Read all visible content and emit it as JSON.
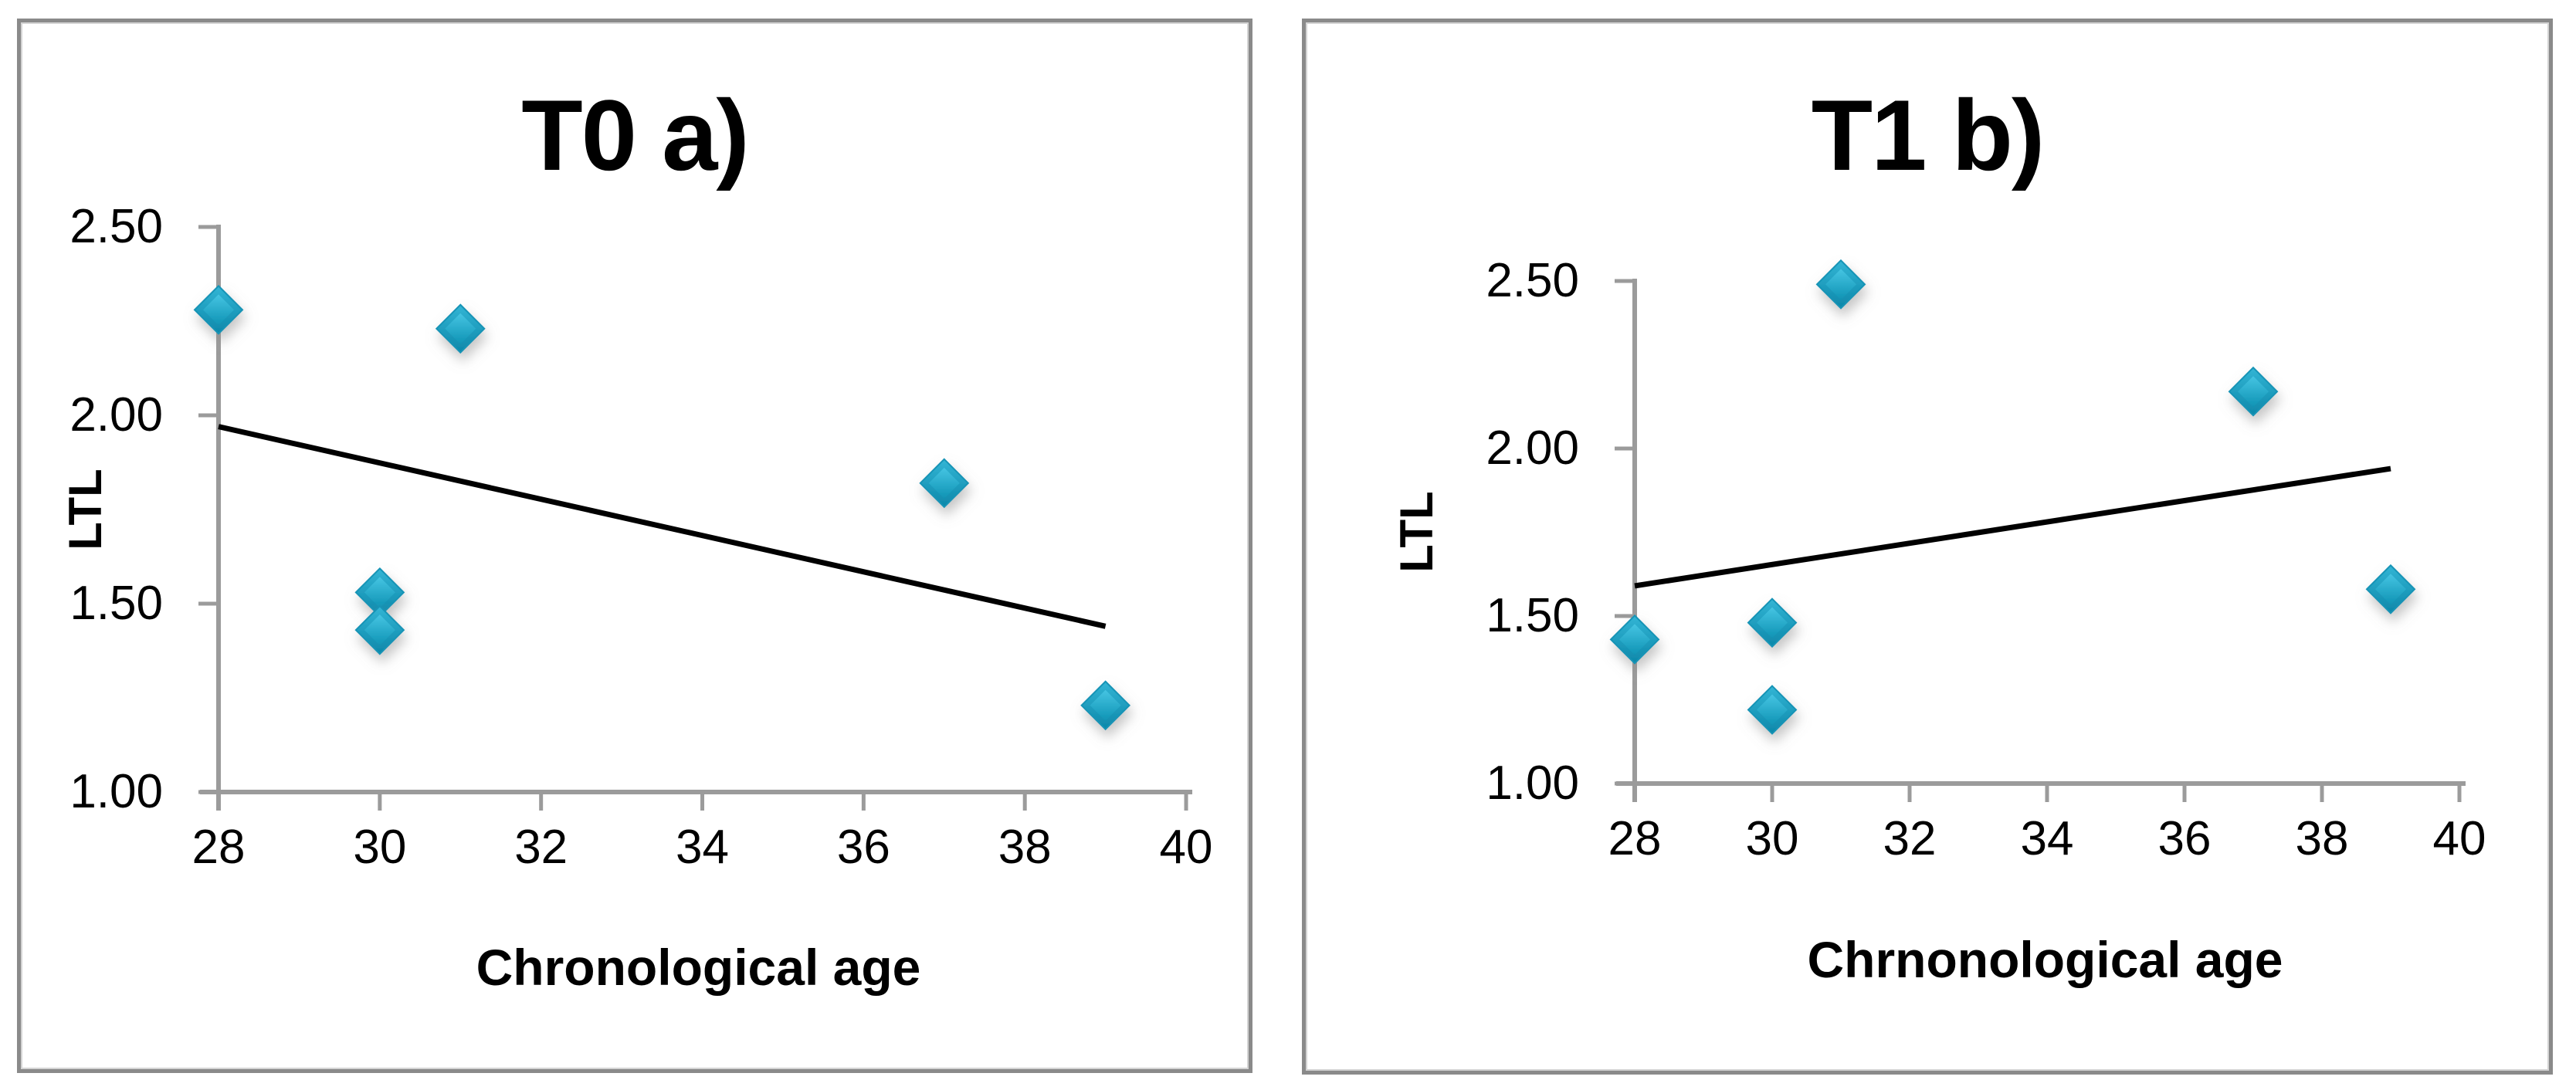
{
  "styles": {
    "background": "#ffffff",
    "panel_border_color": "#8a8a8a",
    "axis_color": "#9b9b9b",
    "text_color": "#000000",
    "marker_color": "#18a4c5",
    "trendline_color": "#000000"
  },
  "chart_data": [
    {
      "type": "scatter",
      "title": "T0 a)",
      "xlabel": "Chronological age",
      "ylabel": "LTL",
      "xlim": [
        28,
        40
      ],
      "ylim": [
        1.0,
        2.5
      ],
      "x_ticks": [
        "28",
        "30",
        "32",
        "34",
        "36",
        "38",
        "40"
      ],
      "y_ticks": [
        "1.00",
        "1.50",
        "2.00",
        "2.50"
      ],
      "grid": false,
      "legend": false,
      "marker": "diamond",
      "marker_color": "#18a4c5",
      "points": [
        {
          "x": 28,
          "y": 2.28
        },
        {
          "x": 30,
          "y": 1.53
        },
        {
          "x": 30,
          "y": 1.43
        },
        {
          "x": 31,
          "y": 2.23
        },
        {
          "x": 37,
          "y": 1.82
        },
        {
          "x": 39,
          "y": 1.23
        }
      ],
      "trendline": {
        "type": "linear",
        "color": "#000000",
        "start": {
          "x": 28,
          "y": 1.97
        },
        "end": {
          "x": 39,
          "y": 1.44
        }
      }
    },
    {
      "type": "scatter",
      "title": "T1 b)",
      "xlabel": "Chrnonological age",
      "ylabel": "LTL",
      "xlim": [
        28,
        40
      ],
      "ylim": [
        1.0,
        2.5
      ],
      "x_ticks": [
        "28",
        "30",
        "32",
        "34",
        "36",
        "38",
        "40"
      ],
      "y_ticks": [
        "1.00",
        "1.50",
        "2.00",
        "2.50"
      ],
      "grid": false,
      "legend": false,
      "marker": "diamond",
      "marker_color": "#18a4c5",
      "points": [
        {
          "x": 28,
          "y": 1.43
        },
        {
          "x": 30,
          "y": 1.48
        },
        {
          "x": 30,
          "y": 1.22
        },
        {
          "x": 31,
          "y": 2.49
        },
        {
          "x": 37,
          "y": 2.17
        },
        {
          "x": 39,
          "y": 1.58
        }
      ],
      "trendline": {
        "type": "linear",
        "color": "#000000",
        "start": {
          "x": 28,
          "y": 1.59
        },
        "end": {
          "x": 39,
          "y": 1.94
        }
      }
    }
  ]
}
